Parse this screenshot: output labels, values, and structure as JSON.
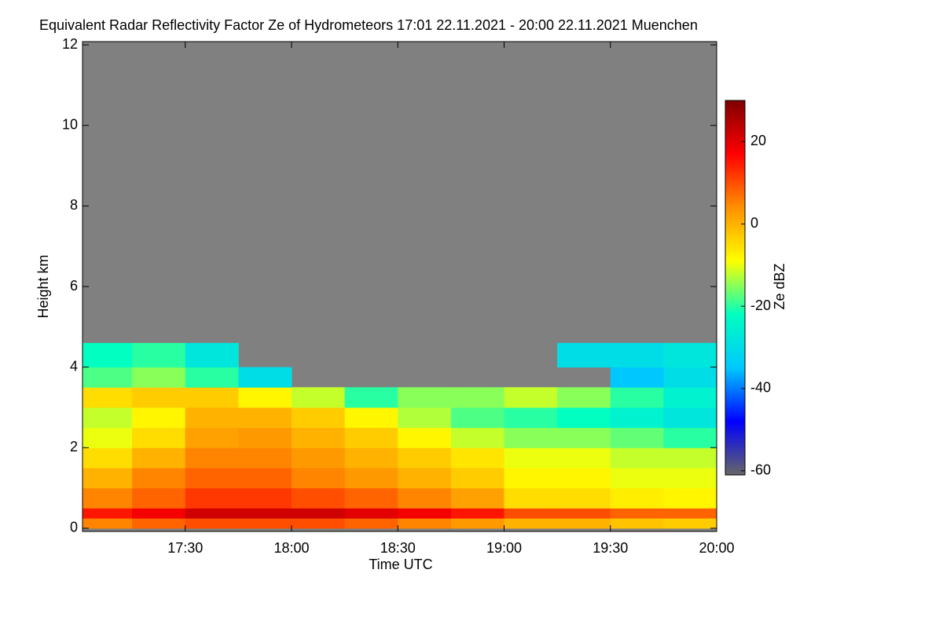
{
  "chart_data": {
    "type": "heatmap",
    "title": "Equivalent Radar Reflectivity Factor Ze of Hydrometeors   17:01 22.11.2021 - 20:00 22.11.2021 Muenchen",
    "x_label": "Time UTC",
    "y_label": "Height km",
    "colorbar_label": "Ze dBZ",
    "background_color": "#808080",
    "xlim": [
      17.0167,
      20.0
    ],
    "xticks": [
      {
        "value": 17.5,
        "label": "17:30"
      },
      {
        "value": 18.0,
        "label": "18:00"
      },
      {
        "value": 18.5,
        "label": "18:30"
      },
      {
        "value": 19.0,
        "label": "19:00"
      },
      {
        "value": 19.5,
        "label": "19:30"
      },
      {
        "value": 20.0,
        "label": "20:00"
      }
    ],
    "ylim": [
      -0.08,
      12.08
    ],
    "yticks": [
      0,
      2,
      4,
      6,
      8,
      10,
      12
    ],
    "zlim": [
      -61,
      30
    ],
    "zticks": [
      -60,
      -40,
      -20,
      0,
      20
    ],
    "colormap": [
      "#666666",
      "#0000ff",
      "#00c8ff",
      "#00ffc0",
      "#ffff00",
      "#ff9000",
      "#ff0000",
      "#800000"
    ],
    "x_bins": [
      17.0167,
      17.25,
      17.5,
      17.75,
      18.0,
      18.25,
      18.5,
      18.75,
      19.0,
      19.25,
      19.5,
      19.75,
      20.0
    ],
    "y_bins": [
      0,
      0.25,
      0.5,
      1,
      1.5,
      2,
      2.5,
      3,
      3.5,
      4,
      4.6
    ],
    "z": [
      [
        5,
        8,
        10,
        10,
        10,
        8,
        5,
        3,
        0,
        0,
        -2,
        -3
      ],
      [
        15,
        18,
        22,
        22,
        22,
        20,
        18,
        15,
        10,
        10,
        8,
        8
      ],
      [
        5,
        8,
        12,
        12,
        10,
        8,
        5,
        2,
        -5,
        -5,
        -7,
        -8
      ],
      [
        0,
        5,
        8,
        8,
        5,
        3,
        0,
        -3,
        -8,
        -8,
        -10,
        -10
      ],
      [
        -5,
        0,
        5,
        5,
        3,
        0,
        -3,
        -6,
        -10,
        -10,
        -12,
        -12
      ],
      [
        -10,
        -5,
        2,
        3,
        0,
        -3,
        -8,
        -12,
        -15,
        -15,
        -17,
        -20
      ],
      [
        -12,
        -8,
        0,
        0,
        -3,
        -8,
        -13,
        -18,
        -20,
        -22,
        -25,
        -28
      ],
      [
        -5,
        -3,
        -3,
        -8,
        -12,
        -20,
        -15,
        -15,
        -12,
        -15,
        -20,
        -25
      ],
      [
        -18,
        -15,
        -20,
        -30,
        null,
        null,
        null,
        null,
        null,
        null,
        -35,
        -30
      ],
      [
        -22,
        -20,
        -28,
        null,
        null,
        null,
        null,
        null,
        null,
        -30,
        -30,
        -28
      ]
    ]
  }
}
